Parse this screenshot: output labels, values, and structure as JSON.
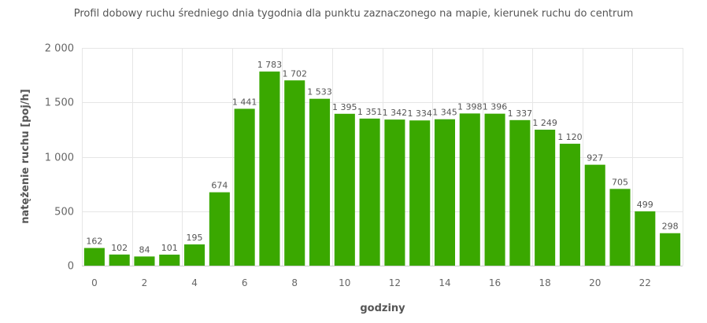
{
  "chart_data": {
    "type": "bar",
    "title": "Profil dobowy ruchu średniego dnia tygodnia dla punktu zaznaczonego na mapie, kierunek ruchu do centrum",
    "xlabel": "godziny",
    "ylabel": "natężenie ruchu [poj/h]",
    "categories": [
      0,
      1,
      2,
      3,
      4,
      5,
      6,
      7,
      8,
      9,
      10,
      11,
      12,
      13,
      14,
      15,
      16,
      17,
      18,
      19,
      20,
      21,
      22,
      23
    ],
    "values": [
      162,
      102,
      84,
      101,
      195,
      674,
      1441,
      1783,
      1702,
      1533,
      1395,
      1351,
      1342,
      1334,
      1345,
      1398,
      1396,
      1337,
      1249,
      1120,
      927,
      705,
      499,
      298
    ],
    "value_labels": [
      "162",
      "102",
      "84",
      "101",
      "195",
      "674",
      "1 441",
      "1 783",
      "1 702",
      "1 533",
      "1 395",
      "1 351",
      "1 342",
      "1 334",
      "1 345",
      "1 398",
      "1 396",
      "1 337",
      "1 249",
      "1 120",
      "927",
      "705",
      "499",
      "298"
    ],
    "x_tick_labels": [
      "0",
      "2",
      "4",
      "6",
      "8",
      "10",
      "12",
      "14",
      "16",
      "18",
      "20",
      "22"
    ],
    "y_ticks": [
      0,
      500,
      1000,
      1500,
      2000
    ],
    "y_tick_labels": [
      "0",
      "500",
      "1 000",
      "1 500",
      "2 000"
    ],
    "ylim": [
      0,
      2000
    ],
    "grid": true,
    "bar_color": "#3aa800"
  }
}
